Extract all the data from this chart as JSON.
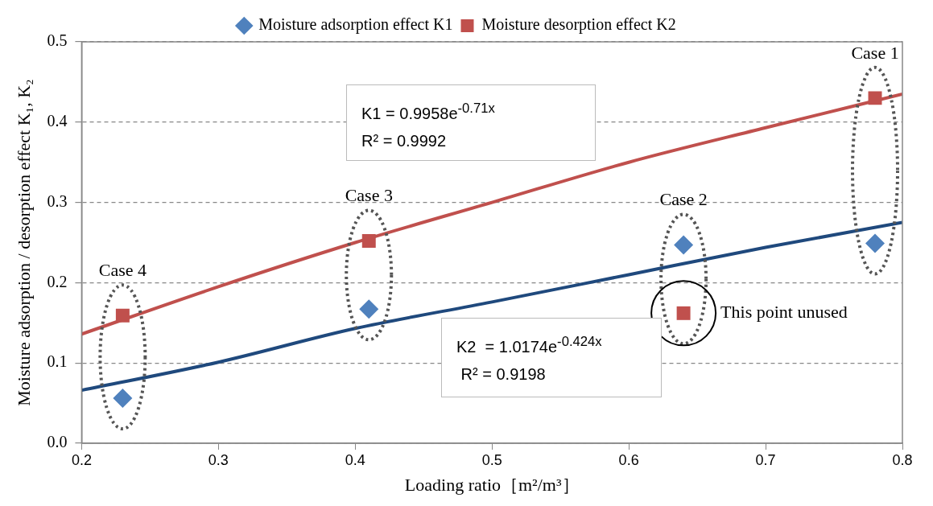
{
  "chart_data": {
    "type": "scatter",
    "xlabel": "Loading ratio［m²/m³］",
    "ylabel": "Moisture adsorption / desorption effect K₁, K₂",
    "xlim": [
      0.2,
      0.8
    ],
    "xticks": [
      0.2,
      0.3,
      0.4,
      0.5,
      0.6,
      0.7,
      0.8
    ],
    "ylim": [
      0,
      0.5
    ],
    "yticks": [
      {
        "value": 0,
        "label": "0.0"
      },
      0.1,
      0.2,
      0.3,
      0.4,
      0.5
    ],
    "grid": "y",
    "legend": "top",
    "x": [
      0.23,
      0.41,
      0.64,
      0.78
    ],
    "series": [
      {
        "name": "Moisture adsorption effect K1",
        "color": "#4f81bd",
        "marker": "diamond",
        "values": [
          0.056,
          0.167,
          0.247,
          0.249
        ]
      },
      {
        "name": "Moisture desorption effect K2",
        "color": "#c0504d",
        "marker": "square",
        "values": [
          0.159,
          0.252,
          0.162,
          0.43
        ]
      },
      {
        "type": "line",
        "color": "#c0504d",
        "marker": "none",
        "x": [
          0.2,
          0.3,
          0.4,
          0.5,
          0.6,
          0.7,
          0.8
        ],
        "values": [
          0.136,
          0.195,
          0.25,
          0.3,
          0.35,
          0.393,
          0.435
        ]
      },
      {
        "type": "line",
        "color": "#1f497d",
        "marker": "none",
        "x": [
          0.2,
          0.3,
          0.4,
          0.5,
          0.6,
          0.7,
          0.8
        ],
        "values": [
          0.066,
          0.101,
          0.143,
          0.176,
          0.21,
          0.244,
          0.275
        ]
      }
    ],
    "annotations": [
      {
        "text": "Case 1",
        "x": 0.78,
        "y": 0.43
      },
      {
        "text": "Case 2",
        "x": 0.64,
        "y": 0.247
      },
      {
        "text": "Case 3",
        "x": 0.41,
        "y": 0.252
      },
      {
        "text": "Case 4",
        "x": 0.23,
        "y": 0.159
      },
      {
        "text": "This point unused",
        "x": 0.64,
        "y": 0.162
      },
      "K1 = 0.9958e$^{-0.71x}$\nR² = 0.9992",
      "K2  = 1.0174e$^{-0.424x}$\n R² = 0.9198"
    ]
  }
}
